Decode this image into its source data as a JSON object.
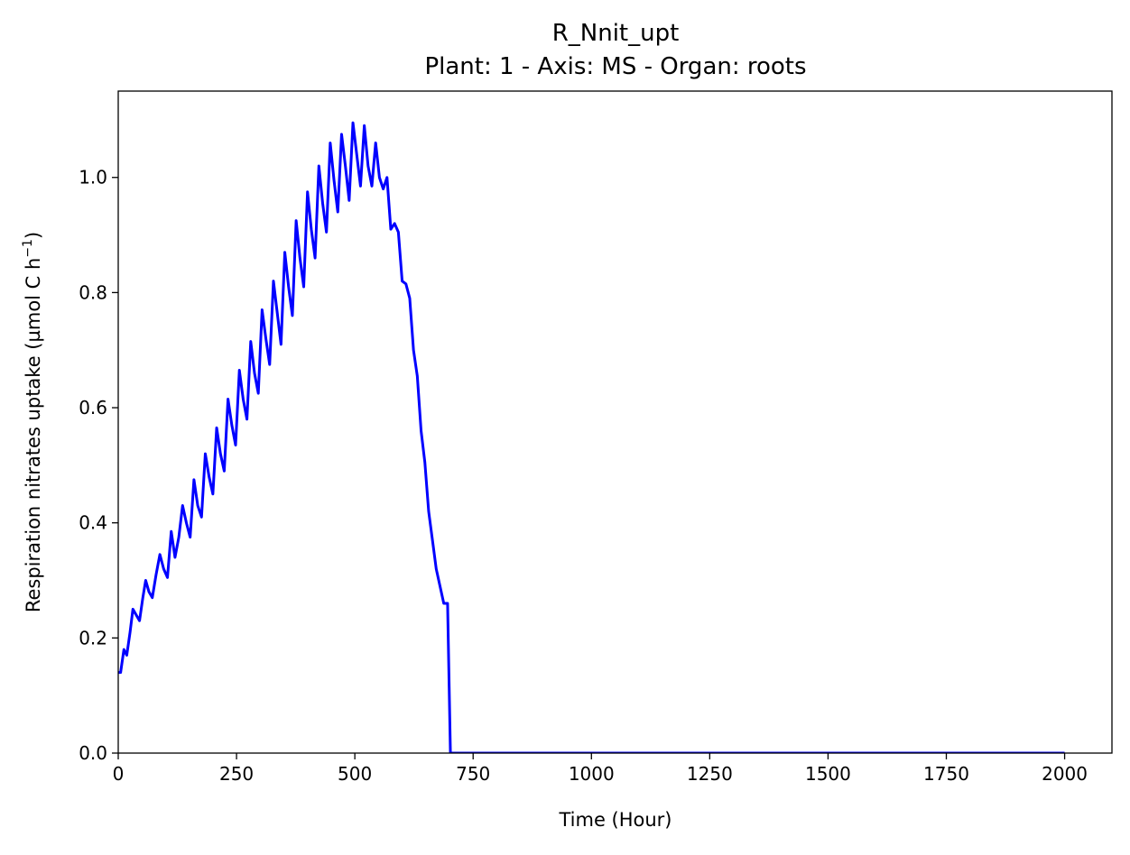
{
  "chart_data": {
    "type": "line",
    "title": "R_Nnit_upt",
    "subtitle": "Plant: 1 - Axis: MS - Organ: roots",
    "xlabel": "Time (Hour)",
    "ylabel_main": "Respiration nitrates uptake (µmol C h",
    "ylabel_exp": "−1",
    "ylabel_close": ")",
    "xlim": [
      0,
      2100
    ],
    "ylim": [
      0,
      1.15
    ],
    "x_ticks": [
      0,
      250,
      500,
      750,
      1000,
      1250,
      1500,
      1750,
      2000
    ],
    "x_tick_labels": [
      "0",
      "250",
      "500",
      "750",
      "1000",
      "1250",
      "1500",
      "1750",
      "2000"
    ],
    "y_ticks": [
      0,
      0.2,
      0.4,
      0.6,
      0.8,
      1.0
    ],
    "y_tick_labels": [
      "0.0",
      "0.2",
      "0.4",
      "0.6",
      "0.8",
      "1.0"
    ],
    "grid": false,
    "series": [
      {
        "color": "#0000ff",
        "x": [
          0,
          5,
          12,
          18,
          25,
          31,
          38,
          45,
          52,
          58,
          65,
          72,
          80,
          88,
          96,
          104,
          112,
          120,
          128,
          136,
          144,
          152,
          160,
          168,
          176,
          184,
          192,
          200,
          208,
          216,
          224,
          232,
          240,
          248,
          256,
          264,
          272,
          280,
          288,
          296,
          304,
          312,
          320,
          328,
          336,
          344,
          352,
          360,
          368,
          376,
          384,
          392,
          400,
          408,
          416,
          424,
          432,
          440,
          448,
          456,
          464,
          472,
          480,
          488,
          496,
          504,
          512,
          520,
          528,
          536,
          544,
          552,
          560,
          568,
          576,
          584,
          592,
          600,
          608,
          616,
          624,
          632,
          640,
          648,
          656,
          664,
          672,
          680,
          688,
          696,
          702,
          704,
          710,
          750,
          1000,
          1250,
          1500,
          1750,
          2000
        ],
        "y": [
          0.14,
          0.14,
          0.18,
          0.17,
          0.21,
          0.25,
          0.24,
          0.23,
          0.27,
          0.3,
          0.28,
          0.27,
          0.31,
          0.345,
          0.32,
          0.305,
          0.385,
          0.34,
          0.375,
          0.43,
          0.4,
          0.375,
          0.475,
          0.43,
          0.41,
          0.52,
          0.48,
          0.45,
          0.565,
          0.52,
          0.49,
          0.615,
          0.57,
          0.535,
          0.665,
          0.615,
          0.58,
          0.715,
          0.66,
          0.625,
          0.77,
          0.72,
          0.675,
          0.82,
          0.765,
          0.71,
          0.87,
          0.81,
          0.76,
          0.925,
          0.86,
          0.81,
          0.975,
          0.91,
          0.86,
          1.02,
          0.955,
          0.905,
          1.06,
          0.995,
          0.94,
          1.075,
          1.02,
          0.96,
          1.095,
          1.04,
          0.985,
          1.09,
          1.02,
          0.985,
          1.06,
          1.0,
          0.98,
          1.0,
          0.91,
          0.92,
          0.905,
          0.82,
          0.815,
          0.79,
          0.7,
          0.655,
          0.56,
          0.505,
          0.42,
          0.37,
          0.32,
          0.29,
          0.26,
          0.26,
          0.0,
          0.0,
          0.0,
          0.0,
          0.0,
          0.0,
          0.0,
          0.0,
          0.0
        ]
      }
    ]
  }
}
